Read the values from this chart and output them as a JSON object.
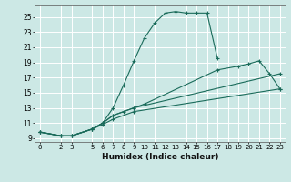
{
  "xlabel": "Humidex (Indice chaleur)",
  "ylabel": "",
  "bg_color": "#cce8e5",
  "grid_color": "#b8d8d5",
  "line_color": "#1a6b5a",
  "xlim": [
    -0.5,
    23.5
  ],
  "ylim": [
    8.5,
    26.5
  ],
  "xticks": [
    0,
    2,
    3,
    5,
    6,
    7,
    8,
    9,
    10,
    11,
    12,
    13,
    14,
    15,
    16,
    17,
    18,
    19,
    20,
    21,
    22,
    23
  ],
  "yticks": [
    9,
    11,
    13,
    15,
    17,
    19,
    21,
    23,
    25
  ],
  "series": [
    {
      "x": [
        0,
        2,
        3,
        5,
        6,
        7,
        8,
        9,
        10,
        11,
        12,
        13,
        14,
        15,
        16,
        17
      ],
      "y": [
        9.8,
        9.3,
        9.3,
        10.2,
        11.0,
        13.0,
        16.0,
        19.2,
        22.2,
        24.2,
        25.5,
        25.7,
        25.5,
        25.5,
        25.5,
        19.5
      ]
    },
    {
      "x": [
        0,
        2,
        3,
        5,
        6,
        7,
        8,
        9,
        10,
        17,
        19,
        20,
        21,
        22,
        23
      ],
      "y": [
        9.8,
        9.3,
        9.3,
        10.2,
        11.0,
        12.0,
        12.5,
        13.0,
        13.5,
        18.0,
        18.5,
        18.8,
        19.2,
        17.5,
        15.5
      ]
    },
    {
      "x": [
        0,
        2,
        3,
        5,
        6,
        7,
        9,
        23
      ],
      "y": [
        9.8,
        9.3,
        9.3,
        10.2,
        11.0,
        12.0,
        13.0,
        17.5
      ]
    },
    {
      "x": [
        0,
        2,
        3,
        5,
        6,
        7,
        9,
        23
      ],
      "y": [
        9.8,
        9.3,
        9.3,
        10.2,
        10.8,
        11.5,
        12.5,
        15.5
      ]
    }
  ]
}
